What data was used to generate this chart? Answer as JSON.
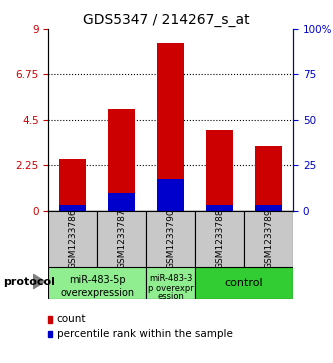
{
  "title": "GDS5347 / 214267_s_at",
  "samples": [
    "GSM1233786",
    "GSM1233787",
    "GSM1233790",
    "GSM1233788",
    "GSM1233789"
  ],
  "red_values": [
    2.55,
    5.05,
    8.3,
    4.0,
    3.2
  ],
  "blue_values": [
    0.28,
    0.85,
    1.55,
    0.28,
    0.28
  ],
  "left_yticks": [
    0,
    2.25,
    4.5,
    6.75,
    9
  ],
  "right_yticks": [
    0,
    25,
    50,
    75,
    100
  ],
  "right_tick_labels": [
    "0",
    "25",
    "50",
    "75",
    "100%"
  ],
  "ylim": [
    0,
    9
  ],
  "grid_lines": [
    2.25,
    4.5,
    6.75
  ],
  "group1_label1": "miR-483-5p",
  "group1_label2": "overexpression",
  "group2_label1": "miR-483-3",
  "group2_label2": "p overexpr",
  "group2_label3": "ession",
  "group3_label": "control",
  "protocol_label": "protocol",
  "legend_red": "count",
  "legend_blue": "percentile rank within the sample",
  "red_color": "#cc0000",
  "blue_color": "#0000cc",
  "gray_color": "#c8c8c8",
  "green_light": "#90ee90",
  "green_dark": "#32cd32",
  "title_fontsize": 10,
  "tick_fontsize": 7.5,
  "sample_fontsize": 6.5,
  "group_fontsize": 7,
  "legend_fontsize": 7.5
}
